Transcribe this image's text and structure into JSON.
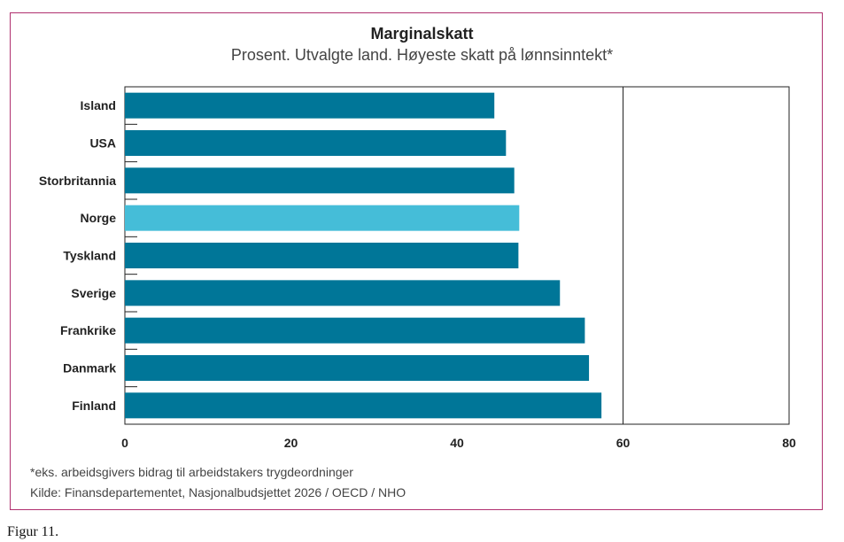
{
  "chart_data": {
    "type": "bar",
    "orientation": "horizontal",
    "title": "Marginalskatt",
    "subtitle": "Prosent. Utvalgte land. Høyeste skatt på lønnsinntekt*",
    "categories": [
      "Island",
      "USA",
      "Storbritannia",
      "Norge",
      "Tyskland",
      "Sverige",
      "Frankrike",
      "Danmark",
      "Finland"
    ],
    "values": [
      44.5,
      45.9,
      46.9,
      47.5,
      47.4,
      52.4,
      55.4,
      55.9,
      57.4
    ],
    "highlight": "Norge",
    "xlim": [
      0,
      80
    ],
    "xticks": [
      "0",
      "20",
      "40",
      "60",
      "80"
    ],
    "gridlines": [
      60
    ],
    "colors": {
      "bar": "#007698",
      "highlight": "#45bdd8",
      "frame": "#b0306e"
    },
    "footnote": "*eks. arbeidsgivers bidrag til arbeidstakers trygdeordninger",
    "source": "Kilde: Finansdepartementet, Nasjonalbudsjettet 2026 / OECD / NHO"
  },
  "caption": "Figur 11."
}
